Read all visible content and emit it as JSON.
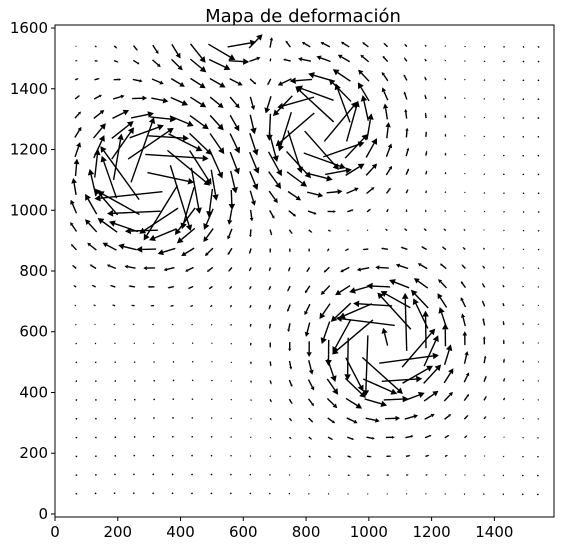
{
  "chart_data": {
    "type": "quiver",
    "title": "Mapa de deformación",
    "xlabel": "",
    "ylabel": "",
    "xlim": [
      0,
      1590
    ],
    "ylim": [
      -10,
      1610
    ],
    "xticks": [
      0,
      200,
      400,
      600,
      800,
      1000,
      1200,
      1400
    ],
    "yticks": [
      0,
      200,
      400,
      600,
      800,
      1000,
      1200,
      1400,
      1600
    ],
    "grid": false,
    "legend": "none",
    "arrow_color": "#000000",
    "field": {
      "x": [
        66,
        128,
        190,
        252,
        314,
        376,
        438,
        500,
        562,
        624,
        686,
        748,
        810,
        872,
        934,
        996,
        1058,
        1120,
        1182,
        1244,
        1306,
        1368,
        1430,
        1492,
        1540
      ],
      "y": [
        66,
        128,
        190,
        252,
        314,
        376,
        438,
        500,
        562,
        624,
        686,
        748,
        810,
        872,
        934,
        996,
        1058,
        1120,
        1182,
        1244,
        1306,
        1368,
        1430,
        1492,
        1540
      ],
      "vortices": [
        {
          "x": 310,
          "y": 1100,
          "strength": -6000
        },
        {
          "x": 840,
          "y": 1270,
          "strength": 4500
        },
        {
          "x": 1050,
          "y": 560,
          "strength": 5200
        },
        {
          "x": 540,
          "y": 1620,
          "strength": 3000
        }
      ],
      "max_arrow_length": 60
    }
  }
}
